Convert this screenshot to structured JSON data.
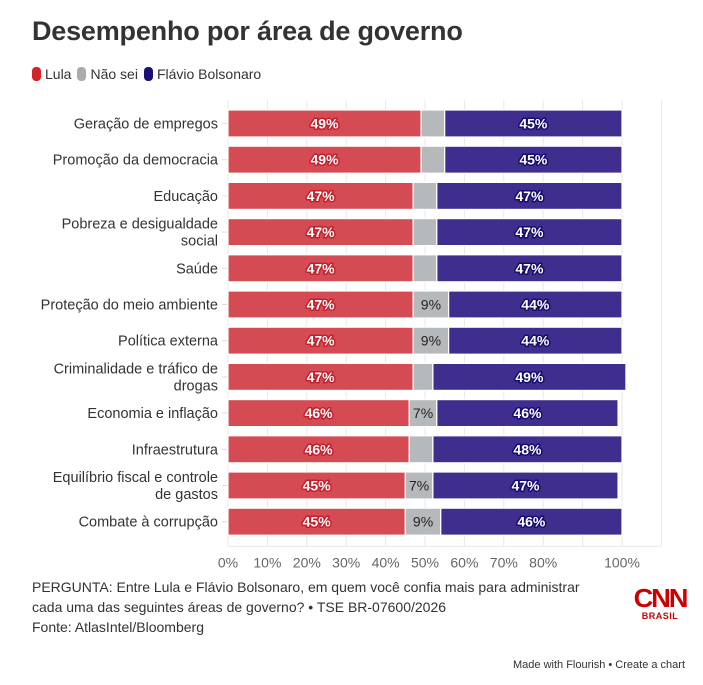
{
  "header": {
    "title": "Desempenho por área de governo"
  },
  "legend": [
    {
      "label": "Lula",
      "color": "#d1232a"
    },
    {
      "label": "Não sei",
      "color": "#a9abae"
    },
    {
      "label": "Flávio Bolsonaro",
      "color": "#1a1075"
    }
  ],
  "colors": {
    "lula_bar": "#d44b54",
    "naosei_bar": "#b6b9bc",
    "flavio_bar": "#3f2e8e",
    "lula_label_shadow": "#c31f2a",
    "flavio_label_shadow": "#150c6e",
    "gridline": "#e8e8e8",
    "axis_text": "#666666"
  },
  "chart_data": {
    "type": "bar",
    "orientation": "horizontal",
    "stacked": true,
    "title": "Desempenho por área de governo",
    "xlabel": "",
    "ylabel": "",
    "xlim": [
      0,
      110
    ],
    "x_ticks": [
      0,
      10,
      20,
      30,
      40,
      50,
      60,
      70,
      80,
      90,
      100,
      110
    ],
    "x_tick_labels": [
      "0%",
      "10%",
      "20%",
      "30%",
      "40%",
      "50%",
      "60%",
      "70%",
      "80%",
      "",
      "100%",
      ""
    ],
    "grid": true,
    "legend_position": "top-left",
    "categories": [
      [
        "Geração de empregos"
      ],
      [
        "Promoção da democracia"
      ],
      [
        "Educação"
      ],
      [
        "Pobreza e desigualdade",
        "social"
      ],
      [
        "Saúde"
      ],
      [
        "Proteção do meio ambiente"
      ],
      [
        "Política externa"
      ],
      [
        "Criminalidade e tráfico de",
        "drogas"
      ],
      [
        "Economia e inflação"
      ],
      [
        "Infraestrutura"
      ],
      [
        "Equilíbrio fiscal e controle",
        "de gastos"
      ],
      [
        "Combate à corrupção"
      ]
    ],
    "series": [
      {
        "name": "Lula",
        "values": [
          49,
          49,
          47,
          47,
          47,
          47,
          47,
          47,
          46,
          46,
          45,
          45
        ],
        "labels": [
          "49%",
          "49%",
          "47%",
          "47%",
          "47%",
          "47%",
          "47%",
          "47%",
          "46%",
          "46%",
          "45%",
          "45%"
        ]
      },
      {
        "name": "Não sei",
        "values": [
          6,
          6,
          6,
          6,
          6,
          9,
          9,
          5,
          7,
          6,
          7,
          9
        ],
        "labels": [
          "",
          "",
          "",
          "",
          "",
          "9%",
          "9%",
          "",
          "7%",
          "",
          "7%",
          "9%"
        ]
      },
      {
        "name": "Flávio Bolsonaro",
        "values": [
          45,
          45,
          47,
          47,
          47,
          44,
          44,
          49,
          46,
          48,
          47,
          46
        ],
        "labels": [
          "45%",
          "45%",
          "47%",
          "47%",
          "47%",
          "44%",
          "44%",
          "49%",
          "46%",
          "48%",
          "47%",
          "46%"
        ]
      }
    ]
  },
  "footer": {
    "question_line1": "PERGUNTA: Entre Lula e Flávio Bolsonaro, em quem você confia mais para administrar",
    "question_line2": "cada uma das seguintes áreas de governo? • TSE BR-07600/2026",
    "source": "Fonte: AtlasIntel/Bloomberg",
    "logo_text": "CNN",
    "logo_subtext": "BRASIL"
  },
  "credit": {
    "made_with": "Made with Flourish",
    "separator": " • ",
    "create": "Create a chart"
  }
}
